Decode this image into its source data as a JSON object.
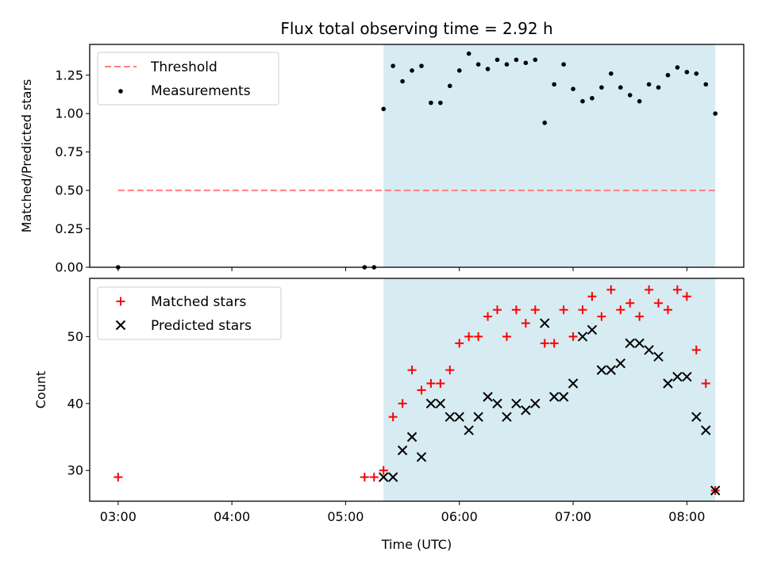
{
  "chart_data": [
    {
      "type": "scatter",
      "title": "Flux total observing time = 2.92 h",
      "ylabel": "Matched/Predicted stars",
      "ylim": [
        0,
        1.45
      ],
      "yticks": [
        0.0,
        0.25,
        0.5,
        0.75,
        1.0,
        1.25
      ],
      "ytick_labels": [
        "0.00",
        "0.25",
        "0.50",
        "0.75",
        "1.00",
        "1.25"
      ],
      "xlim": [
        "02:45",
        "08:30"
      ],
      "shaded_interval": [
        "05:20",
        "08:15"
      ],
      "shaded_color": "#add8e6",
      "legend_position": "upper-left",
      "threshold": {
        "name": "Threshold",
        "value": 0.5,
        "x_range": [
          "03:00",
          "08:15"
        ],
        "color": "#ff7f7f",
        "style": "dashed"
      },
      "series": [
        {
          "name": "Measurements",
          "color": "#000000",
          "marker": "dot",
          "x": [
            "03:00",
            "05:10",
            "05:15",
            "05:20",
            "05:25",
            "05:30",
            "05:35",
            "05:40",
            "05:45",
            "05:50",
            "05:55",
            "06:00",
            "06:05",
            "06:10",
            "06:15",
            "06:20",
            "06:25",
            "06:30",
            "06:35",
            "06:40",
            "06:45",
            "06:50",
            "06:55",
            "07:00",
            "07:05",
            "07:10",
            "07:15",
            "07:20",
            "07:25",
            "07:30",
            "07:35",
            "07:40",
            "07:45",
            "07:50",
            "07:55",
            "08:00",
            "08:05",
            "08:10",
            "08:15"
          ],
          "y": [
            0.0,
            0.0,
            0.0,
            1.03,
            1.31,
            1.21,
            1.28,
            1.31,
            1.07,
            1.07,
            1.18,
            1.28,
            1.39,
            1.32,
            1.29,
            1.35,
            1.32,
            1.35,
            1.33,
            1.35,
            0.94,
            1.19,
            1.32,
            1.16,
            1.08,
            1.1,
            1.17,
            1.26,
            1.17,
            1.12,
            1.08,
            1.19,
            1.17,
            1.25,
            1.3,
            1.27,
            1.26,
            1.19,
            1.0
          ]
        }
      ]
    },
    {
      "type": "scatter",
      "xlabel": "Time (UTC)",
      "ylabel": "Count",
      "ylim": [
        25.4,
        58.7
      ],
      "yticks": [
        30,
        40,
        50
      ],
      "ytick_labels": [
        "30",
        "40",
        "50"
      ],
      "xlim": [
        "02:45",
        "08:30"
      ],
      "xticks": [
        "03:00",
        "04:00",
        "05:00",
        "06:00",
        "07:00",
        "08:00"
      ],
      "shaded_interval": [
        "05:20",
        "08:15"
      ],
      "shaded_color": "#add8e6",
      "legend_position": "upper-left",
      "series": [
        {
          "name": "Matched stars",
          "color": "#ff0000",
          "marker": "plus",
          "x": [
            "03:00",
            "05:10",
            "05:15",
            "05:20",
            "05:25",
            "05:30",
            "05:35",
            "05:40",
            "05:45",
            "05:50",
            "05:55",
            "06:00",
            "06:05",
            "06:10",
            "06:15",
            "06:20",
            "06:25",
            "06:30",
            "06:35",
            "06:40",
            "06:45",
            "06:50",
            "06:55",
            "07:00",
            "07:05",
            "07:10",
            "07:15",
            "07:20",
            "07:25",
            "07:30",
            "07:35",
            "07:40",
            "07:45",
            "07:50",
            "07:55",
            "08:00",
            "08:05",
            "08:10",
            "08:15"
          ],
          "y": [
            29,
            29,
            29,
            30,
            38,
            40,
            45,
            42,
            43,
            43,
            45,
            49,
            50,
            50,
            53,
            54,
            50,
            54,
            52,
            54,
            49,
            49,
            54,
            50,
            54,
            56,
            53,
            57,
            54,
            55,
            53,
            57,
            55,
            54,
            57,
            56,
            48,
            43,
            27
          ]
        },
        {
          "name": "Predicted stars",
          "color": "#000000",
          "marker": "x",
          "x": [
            "05:20",
            "05:25",
            "05:30",
            "05:35",
            "05:40",
            "05:45",
            "05:50",
            "05:55",
            "06:00",
            "06:05",
            "06:10",
            "06:15",
            "06:20",
            "06:25",
            "06:30",
            "06:35",
            "06:40",
            "06:45",
            "06:50",
            "06:55",
            "07:00",
            "07:05",
            "07:10",
            "07:15",
            "07:20",
            "07:25",
            "07:30",
            "07:35",
            "07:40",
            "07:45",
            "07:50",
            "07:55",
            "08:00",
            "08:05",
            "08:10",
            "08:15"
          ],
          "y": [
            29,
            29,
            33,
            35,
            32,
            40,
            40,
            38,
            38,
            36,
            38,
            41,
            40,
            38,
            40,
            39,
            40,
            52,
            41,
            41,
            43,
            50,
            51,
            45,
            45,
            46,
            49,
            49,
            48,
            47,
            43,
            44,
            44,
            38,
            36,
            27
          ]
        }
      ]
    }
  ]
}
